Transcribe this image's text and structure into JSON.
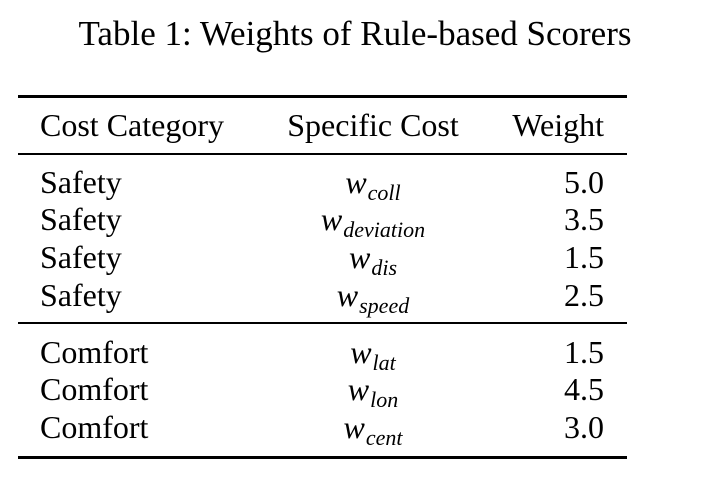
{
  "caption": "Table 1: Weights of Rule-based Scorers",
  "table": {
    "headers": [
      "Cost Category",
      "Specific Cost",
      "Weight"
    ],
    "groups": [
      {
        "rows": [
          {
            "category": "Safety",
            "cost_base": "w",
            "cost_sub": "coll",
            "weight": "5.0"
          },
          {
            "category": "Safety",
            "cost_base": "w",
            "cost_sub": "deviation",
            "weight": "3.5"
          },
          {
            "category": "Safety",
            "cost_base": "w",
            "cost_sub": "dis",
            "weight": "1.5"
          },
          {
            "category": "Safety",
            "cost_base": "w",
            "cost_sub": "speed",
            "weight": "2.5"
          }
        ]
      },
      {
        "rows": [
          {
            "category": "Comfort",
            "cost_base": "w",
            "cost_sub": "lat",
            "weight": "1.5"
          },
          {
            "category": "Comfort",
            "cost_base": "w",
            "cost_sub": "lon",
            "weight": "4.5"
          },
          {
            "category": "Comfort",
            "cost_base": "w",
            "cost_sub": "cent",
            "weight": "3.0"
          }
        ]
      }
    ]
  }
}
